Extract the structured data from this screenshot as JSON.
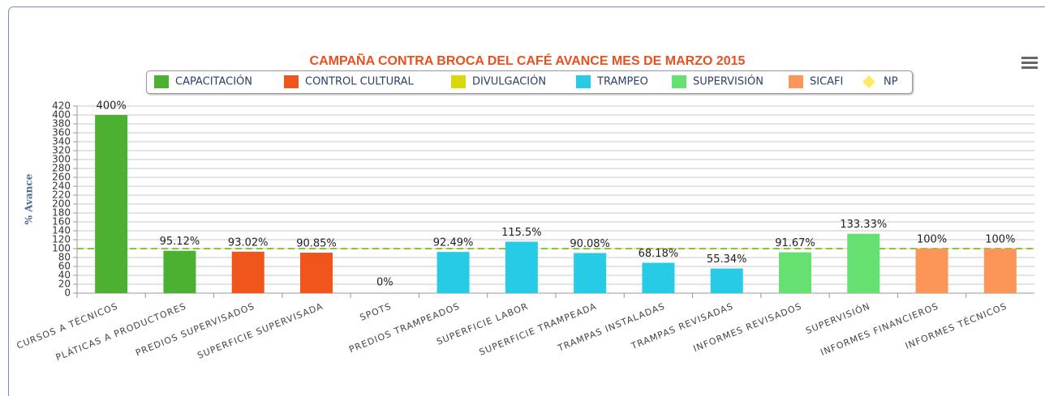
{
  "chart_data": {
    "type": "bar",
    "title": "CAMPAÑA CONTRA BROCA DEL CAFÉ AVANCE MES DE MARZO 2015",
    "y_label": "% Avance",
    "categories": [
      "CURSOS A TÉCNICOS",
      "PLÁTICAS A PRODUCTORES",
      "PREDIOS SUPERVISADOS",
      "SUPERFICIE SUPERVISADA",
      "SPOTS",
      "PREDIOS TRAMPEADOS",
      "SUPERFICIE LABOR",
      "SUPERFICIE TRAMPEADA",
      "TRAMPAS INSTALADAS",
      "TRAMPAS REVISADAS",
      "INFORMES REVISADOS",
      "SUPERVISIÓN",
      "INFORMES FINANCIEROS",
      "INFORMES TÉCNICOS"
    ],
    "series": [
      {
        "name": "CAPACITACIÓN",
        "color": "#4cb030",
        "values": [
          400,
          95.12,
          null,
          null,
          null,
          null,
          null,
          null,
          null,
          null,
          null,
          null,
          null,
          null
        ],
        "value_labels": [
          "400%",
          "95.12%",
          null,
          null,
          null,
          null,
          null,
          null,
          null,
          null,
          null,
          null,
          null,
          null
        ]
      },
      {
        "name": "CONTROL CULTURAL",
        "color": "#f0561c",
        "values": [
          null,
          null,
          93.02,
          90.85,
          null,
          null,
          null,
          null,
          null,
          null,
          null,
          null,
          null,
          null
        ],
        "value_labels": [
          null,
          null,
          "93.02%",
          "90.85%",
          null,
          null,
          null,
          null,
          null,
          null,
          null,
          null,
          null,
          null
        ]
      },
      {
        "name": "DIVULGACIÓN",
        "color": "#d9d90a",
        "values": [
          null,
          null,
          null,
          null,
          0,
          null,
          null,
          null,
          null,
          null,
          null,
          null,
          null,
          null
        ],
        "value_labels": [
          null,
          null,
          null,
          null,
          "0%",
          null,
          null,
          null,
          null,
          null,
          null,
          null,
          null,
          null
        ]
      },
      {
        "name": "TRAMPEO",
        "color": "#27cbe6",
        "values": [
          null,
          null,
          null,
          null,
          null,
          92.49,
          115.5,
          90.08,
          68.18,
          55.34,
          null,
          null,
          null,
          null
        ],
        "value_labels": [
          null,
          null,
          null,
          null,
          null,
          "92.49%",
          "115.5%",
          "90.08%",
          "68.18%",
          "55.34%",
          null,
          null,
          null,
          null
        ]
      },
      {
        "name": "SUPERVISIÓN",
        "color": "#66e070",
        "values": [
          null,
          null,
          null,
          null,
          null,
          null,
          null,
          null,
          null,
          null,
          91.67,
          133.33,
          null,
          null
        ],
        "value_labels": [
          null,
          null,
          null,
          null,
          null,
          null,
          null,
          null,
          null,
          null,
          "91.67%",
          "133.33%",
          null,
          null
        ]
      },
      {
        "name": "SICAFI",
        "color": "#fb9558",
        "values": [
          null,
          null,
          null,
          null,
          null,
          null,
          null,
          null,
          null,
          null,
          null,
          null,
          100,
          100
        ],
        "value_labels": [
          null,
          null,
          null,
          null,
          null,
          null,
          null,
          null,
          null,
          null,
          null,
          null,
          "100%",
          "100%"
        ]
      },
      {
        "name": "NP",
        "color": "#ffe966",
        "values": [
          null,
          null,
          null,
          null,
          null,
          null,
          null,
          null,
          null,
          null,
          null,
          null,
          null,
          null
        ]
      }
    ],
    "reference_line": {
      "value": 100,
      "color": "#8cc43c"
    },
    "ylim": [
      0,
      420
    ],
    "yticks": [
      0,
      20,
      40,
      60,
      80,
      100,
      120,
      140,
      160,
      180,
      200,
      220,
      240,
      260,
      280,
      300,
      320,
      340,
      360,
      380,
      400,
      420
    ],
    "grid": true
  }
}
